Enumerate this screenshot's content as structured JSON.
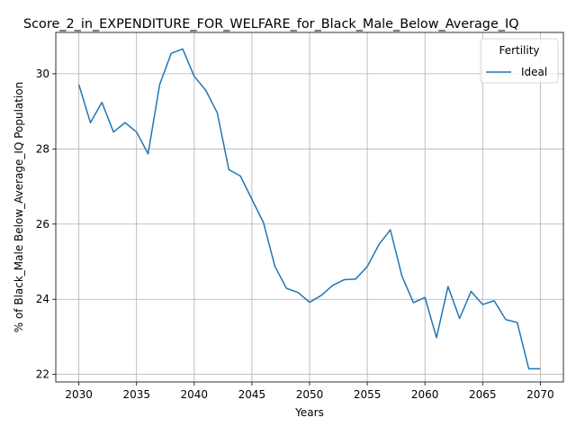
{
  "chart_data": {
    "type": "line",
    "title": "Score_2_in_EXPENDITURE_FOR_WELFARE_for_Black_Male_Below_Average_IQ",
    "xlabel": "Years",
    "ylabel": "% of Black_Male Below_Average_IQ Population",
    "xlim": [
      2028,
      2072
    ],
    "ylim": [
      21.8,
      31.1
    ],
    "x_ticks": [
      2030,
      2035,
      2040,
      2045,
      2050,
      2055,
      2060,
      2065,
      2070
    ],
    "y_ticks": [
      22,
      24,
      26,
      28,
      30
    ],
    "grid": true,
    "legend": {
      "title": "Fertility",
      "position": "top-right"
    },
    "colors": {
      "series": "#1f77b4"
    },
    "series": [
      {
        "name": "Ideal",
        "x": [
          2030,
          2031,
          2032,
          2033,
          2034,
          2035,
          2036,
          2037,
          2038,
          2039,
          2040,
          2041,
          2042,
          2043,
          2044,
          2045,
          2046,
          2047,
          2048,
          2049,
          2050,
          2051,
          2052,
          2053,
          2054,
          2055,
          2056,
          2057,
          2058,
          2059,
          2060,
          2061,
          2062,
          2063,
          2064,
          2065,
          2066,
          2067,
          2068,
          2069,
          2070
        ],
        "values": [
          29.71,
          28.7,
          29.24,
          28.45,
          28.7,
          28.45,
          27.87,
          29.71,
          30.54,
          30.66,
          29.93,
          29.56,
          28.96,
          27.45,
          27.28,
          26.66,
          26.04,
          24.87,
          24.29,
          24.18,
          23.92,
          24.1,
          24.37,
          24.52,
          24.54,
          24.87,
          25.45,
          25.85,
          24.62,
          23.91,
          24.05,
          22.98,
          24.34,
          23.49,
          24.21,
          23.86,
          23.96,
          23.46,
          23.38,
          22.15,
          22.15
        ]
      }
    ]
  }
}
